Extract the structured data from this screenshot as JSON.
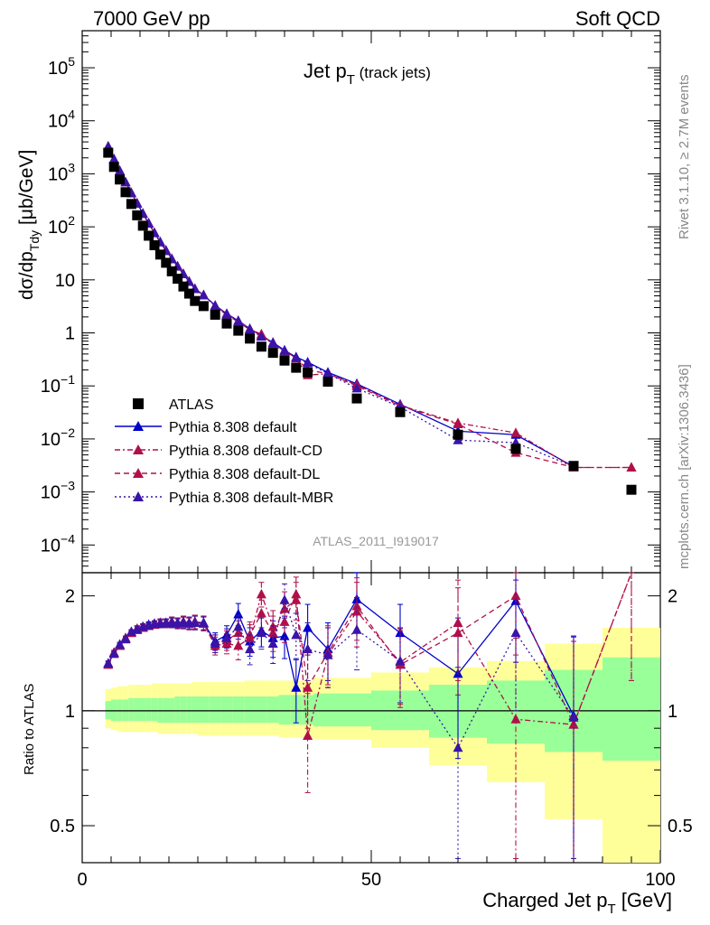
{
  "header": {
    "left": "7000 GeV pp",
    "right": "Soft QCD"
  },
  "side": {
    "rivet": "Rivet 3.1.10, ≥ 2.7M events",
    "ref": "mcplots.cern.ch [arXiv:1306.3436]"
  },
  "main": {
    "title_main": "Jet p",
    "title_sub": "T",
    "title_suffix": " (track jets)",
    "analysis": "ATLAS_2011_I919017"
  },
  "labels": {
    "ylabel": "dσ/dp",
    "ylabel_sub": "Tdy",
    "ylabel_unit": " [μb/GeV]",
    "ratio_ylabel": "Ratio to ATLAS",
    "xlabel": "Charged Jet p",
    "xlabel_sub": "T",
    "xlabel_unit": " [GeV]"
  },
  "colors": {
    "atlas": "#000000",
    "default": "#0000cc",
    "cd": "#b0104a",
    "dl": "#b0104a",
    "mbr": "#3a14a8",
    "band_outer": "#ffff99",
    "band_inner": "#99ff99"
  },
  "chart_data": [
    {
      "type": "scatter",
      "panel": "main",
      "xlim": [
        0,
        100
      ],
      "ylim": [
        3e-05,
        500000
      ],
      "yscale": "log",
      "x_ticks": [
        "0",
        "50",
        "100"
      ],
      "y_ticks": [
        "10^-4",
        "10^-3",
        "10^-2",
        "10^-1",
        "1",
        "10",
        "10^2",
        "10^3",
        "10^4",
        "10^5"
      ],
      "legend": [
        "ATLAS",
        "Pythia 8.308 default",
        "Pythia 8.308 default-CD",
        "Pythia 8.308 default-DL",
        "Pythia 8.308 default-MBR"
      ],
      "legend_position": "bottom-left",
      "atlas": {
        "x": [
          4.5,
          5.5,
          6.5,
          7.5,
          8.5,
          9.5,
          10.5,
          11.5,
          12.5,
          13.5,
          14.5,
          15.5,
          16.5,
          17.5,
          18.5,
          19.5,
          21,
          23,
          25,
          27,
          29,
          31,
          33,
          35,
          37,
          39,
          42.5,
          47.5,
          55,
          65,
          75,
          85,
          95
        ],
        "y": [
          2500,
          1350,
          780,
          450,
          270,
          165,
          105,
          68,
          45,
          30,
          21,
          14.5,
          10.5,
          7.5,
          5.5,
          4.0,
          3.2,
          2.2,
          1.5,
          1.1,
          0.78,
          0.55,
          0.42,
          0.3,
          0.22,
          0.18,
          0.12,
          0.058,
          0.032,
          0.012,
          0.0065,
          0.0031,
          0.0011
        ]
      },
      "series": [
        {
          "name": "Pythia 8.308 default",
          "x": [
            4.5,
            5.5,
            6.5,
            7.5,
            8.5,
            9.5,
            10.5,
            11.5,
            12.5,
            13.5,
            14.5,
            15.5,
            16.5,
            17.5,
            18.5,
            19.5,
            21,
            23,
            25,
            27,
            29,
            31,
            33,
            35,
            37,
            39,
            42.5,
            47.5,
            55,
            65,
            75,
            85
          ],
          "y": [
            3300,
            1900,
            1150,
            700,
            440,
            280,
            180,
            118,
            78,
            52,
            36,
            25,
            18,
            13,
            9.3,
            6.8,
            5.2,
            3.3,
            2.3,
            1.7,
            1.2,
            0.88,
            0.66,
            0.47,
            0.35,
            0.28,
            0.18,
            0.11,
            0.045,
            0.014,
            0.012,
            0.003
          ]
        },
        {
          "name": "Pythia 8.308 default-CD",
          "x": [
            4.5,
            5.5,
            6.5,
            7.5,
            8.5,
            9.5,
            10.5,
            11.5,
            12.5,
            13.5,
            14.5,
            15.5,
            16.5,
            17.5,
            18.5,
            19.5,
            21,
            23,
            25,
            27,
            29,
            31,
            33,
            35,
            37,
            39,
            42.5,
            47.5,
            55,
            65,
            75,
            85,
            95
          ],
          "y": [
            3250,
            1880,
            1130,
            690,
            430,
            275,
            176,
            115,
            76,
            51,
            35,
            24.5,
            17.8,
            12.8,
            9.2,
            6.7,
            5.1,
            3.2,
            2.2,
            1.6,
            1.15,
            0.95,
            0.62,
            0.44,
            0.33,
            0.16,
            0.17,
            0.105,
            0.043,
            0.02,
            0.013,
            0.0029,
            0.0029
          ]
        },
        {
          "name": "Pythia 8.308 default-DL",
          "x": [
            4.5,
            5.5,
            6.5,
            7.5,
            8.5,
            9.5,
            10.5,
            11.5,
            12.5,
            13.5,
            14.5,
            15.5,
            16.5,
            17.5,
            18.5,
            19.5,
            21,
            23,
            25,
            27,
            29,
            31,
            33,
            35,
            37,
            39,
            42.5,
            47.5,
            55,
            65,
            75,
            85,
            95
          ],
          "y": [
            3280,
            1890,
            1140,
            695,
            435,
            278,
            178,
            116,
            77,
            51.5,
            35.5,
            24.8,
            17.9,
            12.9,
            9.25,
            6.75,
            5.15,
            3.25,
            2.25,
            1.65,
            1.18,
            0.9,
            0.64,
            0.45,
            0.34,
            0.2,
            0.17,
            0.1,
            0.042,
            0.019,
            0.0055,
            0.0029,
            0.0029
          ]
        },
        {
          "name": "Pythia 8.308 default-MBR",
          "x": [
            4.5,
            5.5,
            6.5,
            7.5,
            8.5,
            9.5,
            10.5,
            11.5,
            12.5,
            13.5,
            14.5,
            15.5,
            16.5,
            17.5,
            18.5,
            19.5,
            21,
            23,
            25,
            27,
            29,
            31,
            33,
            35,
            37,
            39,
            42.5,
            47.5,
            55,
            65,
            75,
            85
          ],
          "y": [
            3270,
            1885,
            1135,
            692,
            432,
            276,
            177,
            115.5,
            76.5,
            51.2,
            35.2,
            24.6,
            17.85,
            12.85,
            9.22,
            6.72,
            5.12,
            3.22,
            2.22,
            1.62,
            1.16,
            0.85,
            0.63,
            0.46,
            0.34,
            0.27,
            0.17,
            0.09,
            0.04,
            0.0095,
            0.0085,
            0.003
          ]
        }
      ]
    },
    {
      "type": "line",
      "panel": "ratio",
      "xlim": [
        0,
        100
      ],
      "ylim": [
        0.4,
        2.3
      ],
      "yscale": "log",
      "y_ticks": [
        "0.5",
        "1",
        "2"
      ],
      "reference_line": 1,
      "bands": {
        "edges": [
          4,
          5,
          6,
          7,
          8,
          9,
          10,
          11,
          12,
          13,
          14,
          15,
          16,
          17,
          18,
          19,
          20,
          22,
          24,
          26,
          28,
          30,
          32,
          34,
          36,
          38,
          40,
          45,
          50,
          60,
          70,
          80,
          90,
          100
        ],
        "outer_up": [
          1.14,
          1.15,
          1.16,
          1.16,
          1.17,
          1.17,
          1.17,
          1.17,
          1.18,
          1.18,
          1.18,
          1.18,
          1.18,
          1.18,
          1.18,
          1.19,
          1.19,
          1.19,
          1.19,
          1.19,
          1.2,
          1.2,
          1.2,
          1.2,
          1.2,
          1.2,
          1.22,
          1.22,
          1.26,
          1.3,
          1.35,
          1.5,
          1.65
        ],
        "outer_down": [
          0.9,
          0.89,
          0.88,
          0.88,
          0.88,
          0.88,
          0.88,
          0.88,
          0.88,
          0.87,
          0.87,
          0.87,
          0.87,
          0.87,
          0.87,
          0.87,
          0.86,
          0.86,
          0.86,
          0.86,
          0.86,
          0.86,
          0.86,
          0.85,
          0.85,
          0.85,
          0.84,
          0.84,
          0.8,
          0.72,
          0.65,
          0.52,
          0.38
        ],
        "inner_up": [
          1.06,
          1.07,
          1.07,
          1.07,
          1.08,
          1.08,
          1.08,
          1.08,
          1.08,
          1.08,
          1.08,
          1.08,
          1.09,
          1.09,
          1.09,
          1.09,
          1.09,
          1.09,
          1.09,
          1.09,
          1.09,
          1.09,
          1.09,
          1.1,
          1.1,
          1.1,
          1.11,
          1.11,
          1.13,
          1.17,
          1.2,
          1.28,
          1.38
        ],
        "inner_down": [
          0.95,
          0.94,
          0.94,
          0.94,
          0.94,
          0.94,
          0.94,
          0.94,
          0.94,
          0.93,
          0.93,
          0.93,
          0.93,
          0.93,
          0.93,
          0.93,
          0.93,
          0.93,
          0.93,
          0.93,
          0.93,
          0.93,
          0.93,
          0.92,
          0.92,
          0.92,
          0.91,
          0.91,
          0.89,
          0.85,
          0.82,
          0.78,
          0.74
        ]
      },
      "series": [
        {
          "name": "Pythia 8.308 default",
          "x": [
            4.5,
            5.5,
            6.5,
            7.5,
            8.5,
            9.5,
            10.5,
            11.5,
            12.5,
            13.5,
            14.5,
            15.5,
            16.5,
            17.5,
            18.5,
            19.5,
            21,
            23,
            25,
            27,
            29,
            31,
            33,
            35,
            37,
            39,
            42.5,
            47.5,
            55,
            65,
            75,
            85
          ],
          "y": [
            1.33,
            1.42,
            1.49,
            1.55,
            1.61,
            1.64,
            1.66,
            1.68,
            1.69,
            1.7,
            1.7,
            1.71,
            1.7,
            1.71,
            1.7,
            1.71,
            1.7,
            1.52,
            1.58,
            1.79,
            1.52,
            1.62,
            1.55,
            1.57,
            1.15,
            1.65,
            1.45,
            1.96,
            1.6,
            1.25,
            1.94,
            0.97
          ],
          "err": [
            0.02,
            0.02,
            0.02,
            0.02,
            0.02,
            0.03,
            0.03,
            0.03,
            0.03,
            0.04,
            0.04,
            0.05,
            0.05,
            0.06,
            0.06,
            0.07,
            0.07,
            0.08,
            0.09,
            0.12,
            0.13,
            0.15,
            0.17,
            0.2,
            0.22,
            0.25,
            0.25,
            0.35,
            0.3,
            0.5,
            0.6,
            0.6
          ]
        },
        {
          "name": "Pythia 8.308 default-CD",
          "x": [
            4.5,
            5.5,
            6.5,
            7.5,
            8.5,
            9.5,
            10.5,
            11.5,
            12.5,
            13.5,
            14.5,
            15.5,
            16.5,
            17.5,
            18.5,
            19.5,
            21,
            23,
            25,
            27,
            29,
            31,
            33,
            35,
            37,
            39,
            42.5,
            47.5,
            55,
            65,
            75,
            85,
            95
          ],
          "y": [
            1.32,
            1.41,
            1.48,
            1.54,
            1.6,
            1.63,
            1.65,
            1.67,
            1.68,
            1.69,
            1.69,
            1.7,
            1.69,
            1.7,
            1.69,
            1.7,
            1.69,
            1.48,
            1.5,
            1.48,
            1.55,
            2.02,
            1.66,
            1.71,
            2.02,
            0.86,
            1.4,
            1.82,
            1.34,
            1.7,
            0.95,
            0.92,
            2.7
          ],
          "err": [
            0.02,
            0.02,
            0.02,
            0.02,
            0.02,
            0.03,
            0.03,
            0.03,
            0.03,
            0.04,
            0.04,
            0.05,
            0.05,
            0.06,
            0.06,
            0.07,
            0.07,
            0.08,
            0.09,
            0.12,
            0.13,
            0.15,
            0.17,
            0.2,
            0.22,
            0.25,
            0.25,
            0.35,
            0.3,
            0.5,
            0.6,
            0.6,
            1.5
          ]
        },
        {
          "name": "Pythia 8.308 default-DL",
          "x": [
            4.5,
            5.5,
            6.5,
            7.5,
            8.5,
            9.5,
            10.5,
            11.5,
            12.5,
            13.5,
            14.5,
            15.5,
            16.5,
            17.5,
            18.5,
            19.5,
            21,
            23,
            25,
            27,
            29,
            31,
            33,
            35,
            37,
            39,
            42.5,
            47.5,
            55,
            65,
            75,
            85,
            95
          ],
          "y": [
            1.33,
            1.42,
            1.48,
            1.55,
            1.6,
            1.64,
            1.65,
            1.67,
            1.69,
            1.7,
            1.69,
            1.71,
            1.69,
            1.71,
            1.69,
            1.71,
            1.69,
            1.5,
            1.53,
            1.6,
            1.58,
            1.8,
            1.6,
            1.85,
            1.95,
            1.15,
            1.42,
            1.88,
            1.32,
            1.6,
            2.0,
            0.92,
            2.7
          ],
          "err": [
            0.02,
            0.02,
            0.02,
            0.02,
            0.02,
            0.03,
            0.03,
            0.03,
            0.03,
            0.04,
            0.04,
            0.05,
            0.05,
            0.06,
            0.06,
            0.07,
            0.07,
            0.08,
            0.09,
            0.12,
            0.13,
            0.15,
            0.17,
            0.2,
            0.22,
            0.25,
            0.25,
            0.35,
            0.3,
            0.5,
            0.6,
            0.6,
            1.5
          ]
        },
        {
          "name": "Pythia 8.308 default-MBR",
          "x": [
            4.5,
            5.5,
            6.5,
            7.5,
            8.5,
            9.5,
            10.5,
            11.5,
            12.5,
            13.5,
            14.5,
            15.5,
            16.5,
            17.5,
            18.5,
            19.5,
            21,
            23,
            25,
            27,
            29,
            31,
            33,
            35,
            37,
            39,
            42.5,
            47.5,
            55,
            65,
            75,
            85
          ],
          "y": [
            1.33,
            1.41,
            1.49,
            1.54,
            1.61,
            1.63,
            1.66,
            1.67,
            1.69,
            1.69,
            1.7,
            1.7,
            1.7,
            1.7,
            1.7,
            1.7,
            1.7,
            1.5,
            1.55,
            1.66,
            1.45,
            1.6,
            1.5,
            1.95,
            1.58,
            1.45,
            1.4,
            1.63,
            1.35,
            0.8,
            1.6,
            0.96
          ],
          "err": [
            0.02,
            0.02,
            0.02,
            0.02,
            0.02,
            0.03,
            0.03,
            0.03,
            0.03,
            0.04,
            0.04,
            0.05,
            0.05,
            0.06,
            0.06,
            0.07,
            0.07,
            0.08,
            0.09,
            0.12,
            0.13,
            0.15,
            0.17,
            0.2,
            0.22,
            0.25,
            0.25,
            0.35,
            0.3,
            0.5,
            0.6,
            0.6
          ]
        }
      ]
    }
  ]
}
